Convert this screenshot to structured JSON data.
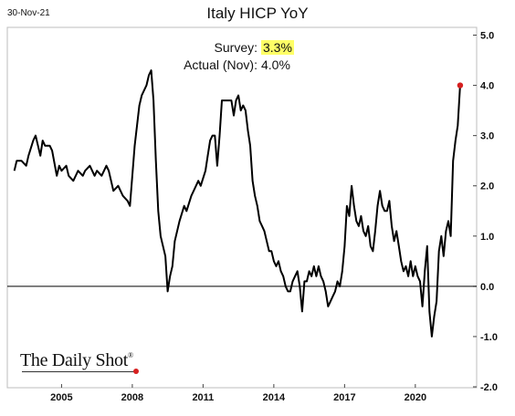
{
  "date_stamp": "30-Nov-21",
  "logo": {
    "text": "The Daily Shot",
    "mark": "®"
  },
  "annotation": {
    "survey_label": "Survey:",
    "survey_value": "3.3%",
    "actual_label": "Actual (Nov):",
    "actual_value": "4.0%",
    "highlight_color": "#ffff66"
  },
  "colors": {
    "line": "#000000",
    "marker": "#d62020",
    "zero_line": "#000000"
  },
  "chart_data": {
    "type": "line",
    "title": "Italy HICP YoY",
    "xlabel": "",
    "ylabel": "",
    "xlim": [
      2002.7,
      2022.6
    ],
    "ylim": [
      -2.0,
      5.0
    ],
    "y_ticks": [
      -2.0,
      -1.0,
      0.0,
      1.0,
      2.0,
      3.0,
      4.0,
      5.0
    ],
    "y_tick_labels": [
      "-2.0",
      "-1.0",
      "0.0",
      "1.0",
      "2.0",
      "3.0",
      "4.0",
      "5.0"
    ],
    "x_ticks": [
      2005,
      2008,
      2011,
      2014,
      2017,
      2020
    ],
    "x_tick_labels": [
      "2005",
      "2008",
      "2011",
      "2014",
      "2017",
      "2020"
    ],
    "grid": false,
    "y_axis_side": "right",
    "reference_line_y": 0,
    "series": [
      {
        "values": [
          [
            2003.0,
            2.3
          ],
          [
            2003.1,
            2.5
          ],
          [
            2003.3,
            2.5
          ],
          [
            2003.5,
            2.4
          ],
          [
            2003.6,
            2.6
          ],
          [
            2003.8,
            2.9
          ],
          [
            2003.9,
            3.0
          ],
          [
            2004.0,
            2.8
          ],
          [
            2004.1,
            2.6
          ],
          [
            2004.2,
            2.9
          ],
          [
            2004.3,
            2.8
          ],
          [
            2004.5,
            2.8
          ],
          [
            2004.6,
            2.7
          ],
          [
            2004.8,
            2.2
          ],
          [
            2004.9,
            2.4
          ],
          [
            2005.0,
            2.3
          ],
          [
            2005.2,
            2.4
          ],
          [
            2005.3,
            2.2
          ],
          [
            2005.5,
            2.1
          ],
          [
            2005.7,
            2.3
          ],
          [
            2005.9,
            2.2
          ],
          [
            2006.0,
            2.3
          ],
          [
            2006.2,
            2.4
          ],
          [
            2006.4,
            2.2
          ],
          [
            2006.5,
            2.3
          ],
          [
            2006.7,
            2.2
          ],
          [
            2006.9,
            2.4
          ],
          [
            2007.0,
            2.3
          ],
          [
            2007.2,
            1.9
          ],
          [
            2007.4,
            2.0
          ],
          [
            2007.6,
            1.8
          ],
          [
            2007.8,
            1.7
          ],
          [
            2007.9,
            1.6
          ],
          [
            2008.0,
            2.2
          ],
          [
            2008.1,
            2.8
          ],
          [
            2008.3,
            3.6
          ],
          [
            2008.4,
            3.8
          ],
          [
            2008.6,
            4.0
          ],
          [
            2008.7,
            4.2
          ],
          [
            2008.8,
            4.3
          ],
          [
            2008.9,
            3.7
          ],
          [
            2009.0,
            2.5
          ],
          [
            2009.1,
            1.5
          ],
          [
            2009.2,
            1.0
          ],
          [
            2009.3,
            0.8
          ],
          [
            2009.4,
            0.6
          ],
          [
            2009.5,
            -0.1
          ],
          [
            2009.6,
            0.2
          ],
          [
            2009.7,
            0.4
          ],
          [
            2009.8,
            0.9
          ],
          [
            2009.9,
            1.1
          ],
          [
            2010.0,
            1.3
          ],
          [
            2010.2,
            1.6
          ],
          [
            2010.3,
            1.5
          ],
          [
            2010.5,
            1.8
          ],
          [
            2010.6,
            1.9
          ],
          [
            2010.8,
            2.1
          ],
          [
            2010.9,
            2.0
          ],
          [
            2011.1,
            2.3
          ],
          [
            2011.2,
            2.6
          ],
          [
            2011.3,
            2.9
          ],
          [
            2011.4,
            3.0
          ],
          [
            2011.5,
            3.0
          ],
          [
            2011.6,
            2.4
          ],
          [
            2011.7,
            3.0
          ],
          [
            2011.8,
            3.7
          ],
          [
            2011.9,
            3.7
          ],
          [
            2012.0,
            3.7
          ],
          [
            2012.2,
            3.7
          ],
          [
            2012.3,
            3.4
          ],
          [
            2012.4,
            3.7
          ],
          [
            2012.5,
            3.8
          ],
          [
            2012.6,
            3.5
          ],
          [
            2012.7,
            3.6
          ],
          [
            2012.8,
            3.5
          ],
          [
            2012.9,
            3.1
          ],
          [
            2013.0,
            2.8
          ],
          [
            2013.1,
            2.1
          ],
          [
            2013.2,
            1.8
          ],
          [
            2013.3,
            1.6
          ],
          [
            2013.4,
            1.3
          ],
          [
            2013.5,
            1.2
          ],
          [
            2013.6,
            1.1
          ],
          [
            2013.7,
            0.9
          ],
          [
            2013.8,
            0.7
          ],
          [
            2013.9,
            0.7
          ],
          [
            2014.0,
            0.5
          ],
          [
            2014.1,
            0.4
          ],
          [
            2014.2,
            0.5
          ],
          [
            2014.3,
            0.3
          ],
          [
            2014.4,
            0.2
          ],
          [
            2014.5,
            0.0
          ],
          [
            2014.6,
            -0.1
          ],
          [
            2014.7,
            -0.1
          ],
          [
            2014.8,
            0.1
          ],
          [
            2014.9,
            0.2
          ],
          [
            2015.0,
            0.3
          ],
          [
            2015.1,
            0.0
          ],
          [
            2015.2,
            -0.5
          ],
          [
            2015.3,
            0.1
          ],
          [
            2015.4,
            0.1
          ],
          [
            2015.5,
            0.3
          ],
          [
            2015.6,
            0.2
          ],
          [
            2015.7,
            0.4
          ],
          [
            2015.8,
            0.2
          ],
          [
            2015.9,
            0.4
          ],
          [
            2016.0,
            0.2
          ],
          [
            2016.1,
            0.1
          ],
          [
            2016.2,
            -0.1
          ],
          [
            2016.3,
            -0.4
          ],
          [
            2016.4,
            -0.3
          ],
          [
            2016.5,
            -0.2
          ],
          [
            2016.6,
            -0.1
          ],
          [
            2016.7,
            0.1
          ],
          [
            2016.8,
            0.0
          ],
          [
            2016.9,
            0.3
          ],
          [
            2017.0,
            0.8
          ],
          [
            2017.1,
            1.6
          ],
          [
            2017.2,
            1.4
          ],
          [
            2017.3,
            2.0
          ],
          [
            2017.4,
            1.6
          ],
          [
            2017.5,
            1.3
          ],
          [
            2017.6,
            1.2
          ],
          [
            2017.7,
            1.4
          ],
          [
            2017.8,
            1.1
          ],
          [
            2017.9,
            1.0
          ],
          [
            2018.0,
            1.2
          ],
          [
            2018.1,
            0.8
          ],
          [
            2018.2,
            0.7
          ],
          [
            2018.3,
            1.1
          ],
          [
            2018.4,
            1.6
          ],
          [
            2018.5,
            1.9
          ],
          [
            2018.6,
            1.6
          ],
          [
            2018.7,
            1.5
          ],
          [
            2018.8,
            1.5
          ],
          [
            2018.9,
            1.7
          ],
          [
            2019.0,
            1.2
          ],
          [
            2019.1,
            0.9
          ],
          [
            2019.2,
            1.1
          ],
          [
            2019.3,
            0.8
          ],
          [
            2019.4,
            0.5
          ],
          [
            2019.5,
            0.3
          ],
          [
            2019.6,
            0.4
          ],
          [
            2019.7,
            0.2
          ],
          [
            2019.8,
            0.5
          ],
          [
            2019.9,
            0.2
          ],
          [
            2020.0,
            0.4
          ],
          [
            2020.1,
            0.2
          ],
          [
            2020.2,
            0.1
          ],
          [
            2020.3,
            -0.4
          ],
          [
            2020.4,
            0.3
          ],
          [
            2020.5,
            0.8
          ],
          [
            2020.6,
            -0.5
          ],
          [
            2020.7,
            -1.0
          ],
          [
            2020.8,
            -0.6
          ],
          [
            2020.9,
            -0.3
          ],
          [
            2021.0,
            0.7
          ],
          [
            2021.1,
            1.0
          ],
          [
            2021.2,
            0.6
          ],
          [
            2021.3,
            1.1
          ],
          [
            2021.4,
            1.3
          ],
          [
            2021.5,
            1.0
          ],
          [
            2021.6,
            2.5
          ],
          [
            2021.7,
            2.9
          ],
          [
            2021.8,
            3.2
          ],
          [
            2021.9,
            4.0
          ]
        ]
      }
    ],
    "highlighted_point": {
      "x": 2021.9,
      "y": 4.0
    }
  }
}
